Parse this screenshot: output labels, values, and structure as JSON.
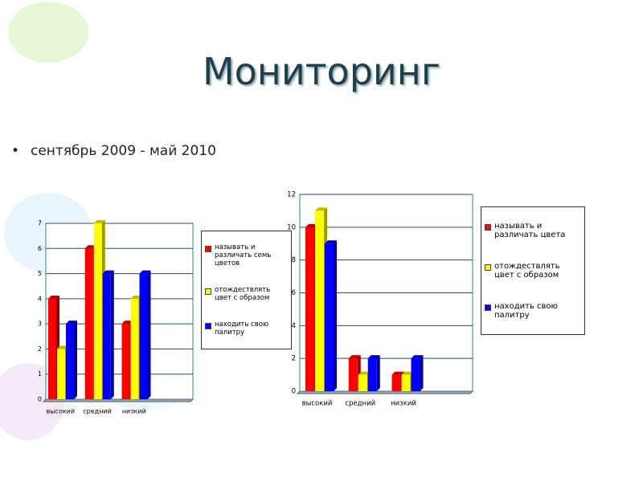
{
  "slide": {
    "title": "Мониторинг",
    "bullet": "сентябрь 2009 - май 2010"
  },
  "chart_data": [
    {
      "type": "bar",
      "categories": [
        "высокий",
        "средний",
        "низкий"
      ],
      "ylim": [
        0,
        7
      ],
      "yticks": [
        0,
        1,
        2,
        3,
        4,
        5,
        6,
        7
      ],
      "grid": true,
      "series": [
        {
          "name": "называть и различать семь цветов",
          "color": "#ff0000",
          "values": [
            4,
            6,
            3
          ]
        },
        {
          "name": "отождествлять цвет с образом",
          "color": "#ffff00",
          "values": [
            2,
            7,
            4
          ]
        },
        {
          "name": "находить свою палитру",
          "color": "#0000ff",
          "values": [
            3,
            5,
            5
          ]
        }
      ]
    },
    {
      "type": "bar",
      "categories": [
        "высокий",
        "средний",
        "низкий"
      ],
      "ylim": [
        0,
        12
      ],
      "yticks": [
        0,
        2,
        4,
        6,
        8,
        10,
        12
      ],
      "grid": true,
      "series": [
        {
          "name": "называть и различать цвета",
          "color": "#ff0000",
          "values": [
            10,
            2,
            1
          ]
        },
        {
          "name": "отождествлять цвет с образом",
          "color": "#ffff00",
          "values": [
            11,
            1,
            1
          ]
        },
        {
          "name": "находить свою палитру",
          "color": "#0000ff",
          "values": [
            9,
            2,
            2
          ]
        }
      ]
    }
  ]
}
